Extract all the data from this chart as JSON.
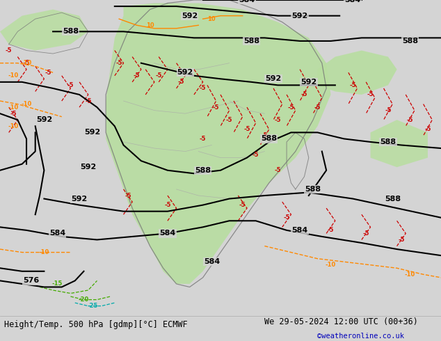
{
  "title_left": "Height/Temp. 500 hPa [gdmp][°C] ECMWF",
  "title_right": "We 29-05-2024 12:00 UTC (00+36)",
  "credit": "©weatheronline.co.uk",
  "bg_color": "#d4d4d4",
  "green_color": "#b8dea0",
  "bar_color": "#eeeeee",
  "z_color": "#000000",
  "temp_neg_color": "#cc0000",
  "orange_color": "#ff8800",
  "green_temp_color": "#44aa00",
  "cyan_color": "#00bbbb",
  "magenta_color": "#cc00cc",
  "fig_w": 6.34,
  "fig_h": 4.9,
  "dpi": 100
}
